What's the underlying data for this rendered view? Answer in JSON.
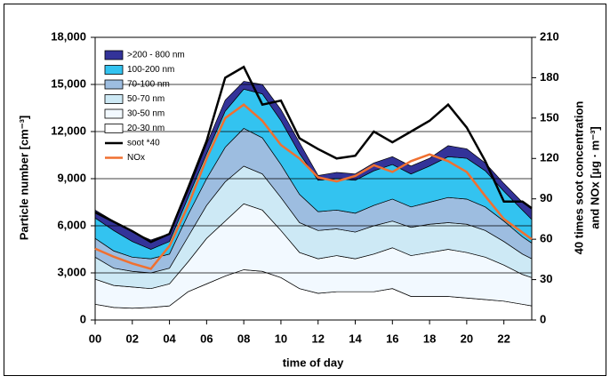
{
  "chart_data": {
    "type": "stacked-area",
    "xlabel": "time of day",
    "ylabel": "Particle number [cm⁻³]",
    "y2label": [
      "40 times soot concentration",
      "and NOx [µg · m⁻³]"
    ],
    "x": [
      0,
      1,
      2,
      3,
      4,
      5,
      6,
      7,
      8,
      9,
      10,
      11,
      12,
      13,
      14,
      15,
      16,
      17,
      18,
      19,
      20,
      21,
      22,
      23,
      23.5
    ],
    "xlim": [
      0,
      23.5
    ],
    "xticks": [
      {
        "value": 0,
        "label": "00"
      },
      {
        "value": 2,
        "label": "02"
      },
      {
        "value": 4,
        "label": "04"
      },
      {
        "value": 6,
        "label": "06"
      },
      {
        "value": 8,
        "label": "08"
      },
      {
        "value": 10,
        "label": "10"
      },
      {
        "value": 12,
        "label": "12"
      },
      {
        "value": 14,
        "label": "14"
      },
      {
        "value": 16,
        "label": "16"
      },
      {
        "value": 18,
        "label": "18"
      },
      {
        "value": 20,
        "label": "20"
      },
      {
        "value": 22,
        "label": "22"
      }
    ],
    "ylim": [
      0,
      18000
    ],
    "yticks": [
      0,
      {
        "value": 3000,
        "label": "3,000"
      },
      {
        "value": 6000,
        "label": "6,000"
      },
      {
        "value": 9000,
        "label": "9,000"
      },
      {
        "value": 12000,
        "label": "12,000"
      },
      {
        "value": 15000,
        "label": "15,000"
      },
      {
        "value": 18000,
        "label": "18,000"
      }
    ],
    "y2lim": [
      0,
      210
    ],
    "y2ticks": [
      0,
      30,
      60,
      90,
      120,
      150,
      180,
      210
    ],
    "grid": true,
    "series": [
      {
        "name": ">200 - 800 nm",
        "type": "area",
        "color": "#333399",
        "values": [
          500,
          600,
          600,
          600,
          500,
          400,
          600,
          700,
          500,
          600,
          700,
          700,
          300,
          400,
          400,
          500,
          500,
          500,
          500,
          700,
          600,
          500,
          500,
          500,
          700
        ]
      },
      {
        "name": "100-200 nm",
        "type": "area",
        "color": "#33c3f0",
        "values": [
          1300,
          1300,
          1000,
          600,
          800,
          1100,
          1600,
          2300,
          2500,
          2800,
          2800,
          2600,
          2000,
          2000,
          2100,
          2200,
          2200,
          2100,
          2300,
          2600,
          2600,
          2300,
          1900,
          1700,
          1500
        ]
      },
      {
        "name": "70-100 nm",
        "type": "area",
        "color": "#9dbde0",
        "values": [
          1200,
          1100,
          900,
          900,
          900,
          1400,
          1700,
          2200,
          2400,
          2300,
          2100,
          1800,
          1200,
          1200,
          1200,
          1300,
          1400,
          1300,
          1400,
          1600,
          1600,
          1500,
          1300,
          1100,
          1000
        ]
      },
      {
        "name": "50-70 nm",
        "type": "area",
        "color": "#cde9f5",
        "values": [
          1400,
          1100,
          1000,
          1000,
          1000,
          1600,
          2100,
          2500,
          2400,
          2300,
          2100,
          1900,
          1800,
          1700,
          1700,
          1800,
          1700,
          1800,
          1800,
          1700,
          1800,
          1700,
          1500,
          1300,
          1200
        ]
      },
      {
        "name": "30-50 nm",
        "type": "area",
        "color": "#f2f9ff",
        "values": [
          1600,
          1400,
          1350,
          1200,
          1400,
          1900,
          2900,
          3500,
          4200,
          3900,
          3000,
          2300,
          2200,
          2300,
          2100,
          2400,
          2600,
          2600,
          2800,
          3000,
          2900,
          2700,
          2300,
          1900,
          1800
        ]
      },
      {
        "name": "20-30 nm",
        "type": "area",
        "color": "#ffffff",
        "values": [
          1000,
          800,
          750,
          800,
          900,
          1800,
          2300,
          2800,
          3200,
          3100,
          2700,
          2000,
          1700,
          1800,
          1800,
          1800,
          2000,
          1500,
          1500,
          1500,
          1400,
          1300,
          1200,
          1000,
          900
        ]
      },
      {
        "name": "soot *40",
        "type": "line",
        "axis": "y2",
        "color": "#000000",
        "values": [
          80,
          73,
          66,
          58,
          64,
          98,
          133,
          180,
          188,
          160,
          163,
          135,
          127,
          120,
          122,
          140,
          132,
          140,
          148,
          160,
          143,
          118,
          88,
          88,
          83
        ]
      },
      {
        "name": "NOx",
        "type": "line",
        "axis": "y2",
        "color": "#f07030",
        "values": [
          53,
          47,
          42,
          38,
          55,
          85,
          120,
          150,
          160,
          148,
          130,
          120,
          106,
          103,
          107,
          115,
          110,
          118,
          123,
          118,
          110,
          92,
          75,
          65,
          60
        ]
      }
    ]
  }
}
